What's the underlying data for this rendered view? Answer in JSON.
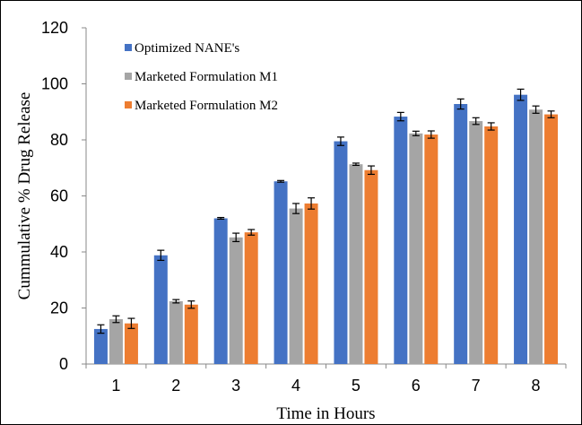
{
  "chart_data": {
    "type": "bar",
    "categories": [
      "1",
      "2",
      "3",
      "4",
      "5",
      "6",
      "7",
      "8"
    ],
    "series": [
      {
        "name": "Optimized NANE's",
        "color": "#4472C4",
        "values": [
          12.5,
          38.8,
          52.0,
          65.2,
          79.5,
          88.3,
          92.8,
          96.1
        ],
        "errors": [
          1.5,
          1.8,
          0.3,
          0.3,
          1.5,
          1.5,
          1.8,
          2.0
        ]
      },
      {
        "name": "Marketed Formulation M1",
        "color": "#A5A5A5",
        "values": [
          16.0,
          22.4,
          45.2,
          55.5,
          71.3,
          82.3,
          86.7,
          90.8
        ],
        "errors": [
          1.2,
          0.6,
          1.5,
          1.8,
          0.4,
          0.8,
          1.2,
          1.3
        ]
      },
      {
        "name": "Marketed Formulation M2",
        "color": "#ED7D31",
        "values": [
          14.5,
          21.2,
          47.0,
          57.3,
          69.2,
          81.9,
          84.8,
          89.1
        ],
        "errors": [
          1.8,
          1.3,
          1.0,
          2.0,
          1.5,
          1.3,
          1.3,
          1.2
        ]
      }
    ],
    "xlabel": "Time in Hours",
    "ylabel": "Cummulative  %  Drug Release",
    "ylim": [
      0,
      120
    ],
    "yticks": [
      0,
      20,
      40,
      60,
      80,
      100,
      120
    ],
    "grid": false,
    "legend": "top-left"
  }
}
